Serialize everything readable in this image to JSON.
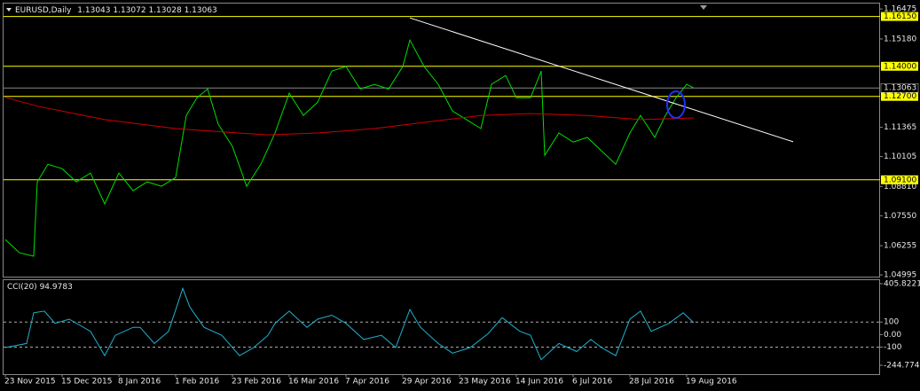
{
  "chart_data": [
    {
      "type": "line",
      "title": "EURUSD,Daily",
      "ohlc": [
        1.13043,
        1.13072,
        1.13028,
        1.13063
      ],
      "xlim": [
        -1.5,
        246.5
      ],
      "ylim": [
        1.0492,
        1.1667
      ],
      "yticks": [
        1.16475,
        {
          "value": 1.1518,
          "label": "1.15180"
        },
        1.11365,
        1.10105,
        {
          "value": 1.0881,
          "label": "1.08810"
        },
        {
          "value": 1.0755,
          "label": "1.07550"
        },
        1.06255,
        1.04995
      ],
      "levels": [
        {
          "value": 1.1615,
          "label": "1.16150"
        },
        {
          "value": 1.14,
          "label": "1.14000"
        },
        {
          "value": 1.127,
          "label": "1.12700"
        },
        {
          "value": 1.091,
          "label": "1.09100"
        }
      ],
      "level_color": "#ffff00",
      "series": [
        {
          "color": "#00e000",
          "x": [
            0,
            4,
            8,
            9,
            12,
            16,
            20,
            24,
            28,
            32,
            36,
            40,
            44,
            48,
            51,
            54,
            57,
            60,
            64,
            68,
            72,
            76,
            80,
            84,
            88,
            92,
            96,
            100,
            104,
            108,
            112,
            114,
            118,
            122,
            126,
            130,
            134,
            137,
            141,
            144,
            148,
            151,
            152,
            156,
            160,
            164,
            168,
            172,
            176,
            179,
            183,
            186,
            189,
            192,
            194
          ],
          "values": [
            1.0652,
            1.0595,
            1.058,
            1.0901,
            1.0977,
            1.0958,
            1.0901,
            1.0939,
            1.0806,
            1.0939,
            1.0863,
            1.0901,
            1.0882,
            1.092,
            1.1188,
            1.1264,
            1.1302,
            1.115,
            1.1054,
            1.0882,
            1.0977,
            1.1112,
            1.1284,
            1.1188,
            1.1245,
            1.1379,
            1.1399,
            1.1302,
            1.1322,
            1.1302,
            1.1399,
            1.1513,
            1.1399,
            1.1322,
            1.1207,
            1.1169,
            1.1131,
            1.1322,
            1.136,
            1.1264,
            1.1264,
            1.1379,
            1.1016,
            1.1112,
            1.1073,
            1.1093,
            1.1035,
            1.0977,
            1.1112,
            1.1188,
            1.1093,
            1.1188,
            1.1264,
            1.1322,
            1.13063
          ]
        },
        {
          "color": "#d00000",
          "x": [
            0,
            9,
            28,
            48,
            58,
            74,
            88,
            104,
            118,
            134,
            148,
            164,
            179,
            194
          ],
          "values": [
            1.1266,
            1.1228,
            1.117,
            1.1131,
            1.112,
            1.1104,
            1.1112,
            1.1131,
            1.1158,
            1.1188,
            1.1196,
            1.1188,
            1.117,
            1.1177
          ]
        },
        {
          "color": "#ffffff",
          "x": [
            114,
            222
          ],
          "values": [
            1.1609,
            1.1074
          ]
        }
      ]
    },
    {
      "type": "line",
      "title": "CCI(20)",
      "xlim": [
        -1.5,
        246.5
      ],
      "ylim": [
        -244.7742,
        405.8221
      ],
      "yticks": [
        405.8221,
        100,
        {
          "value": 0,
          "label": "0.00"
        },
        -100,
        -244.7742
      ],
      "xticks": [
        {
          "value": 0,
          "label": "23 Nov 2015"
        },
        {
          "value": 16,
          "label": "15 Dec 2015"
        },
        {
          "value": 32,
          "label": "8 Jan 2016"
        },
        {
          "value": 48,
          "label": "1 Feb 2016"
        },
        {
          "value": 64,
          "label": "23 Feb 2016"
        },
        {
          "value": 80,
          "label": "16 Mar 2016"
        },
        {
          "value": 96,
          "label": "7 Apr 2016"
        },
        {
          "value": 112,
          "label": "29 Apr 2016"
        },
        {
          "value": 128,
          "label": "23 May 2016"
        },
        {
          "value": 144,
          "label": "14 Jun 2016"
        },
        {
          "value": 160,
          "label": "6 Jul 2016"
        },
        {
          "value": 176,
          "label": "28 Jul 2016"
        },
        {
          "value": 192,
          "label": "19 Aug 2016"
        }
      ],
      "series": [
        {
          "color": "#20b2d0",
          "x": [
            0,
            6,
            8,
            11,
            14,
            18,
            24,
            28,
            31,
            36,
            38,
            42,
            46,
            50,
            52,
            56,
            61,
            66,
            70,
            74,
            76,
            80,
            85,
            88,
            92,
            96,
            101,
            106,
            110,
            114,
            117,
            122,
            126,
            131,
            136,
            140,
            145,
            148,
            151,
            156,
            161,
            165,
            168,
            172,
            176,
            179,
            182,
            187,
            191,
            194
          ],
          "values": [
            -103,
            -71,
            174,
            187,
            90,
            123,
            26,
            -168,
            -6,
            58,
            58,
            -71,
            26,
            368,
            219,
            58,
            -6,
            -168,
            -103,
            -6,
            90,
            187,
            58,
            123,
            155,
            90,
            -39,
            -6,
            -103,
            200,
            58,
            -71,
            -148,
            -103,
            6,
            135,
            26,
            -6,
            -200,
            -71,
            -135,
            -39,
            -103,
            -168,
            123,
            187,
            26,
            90,
            174,
            94.9783
          ]
        }
      ]
    }
  ]
}
